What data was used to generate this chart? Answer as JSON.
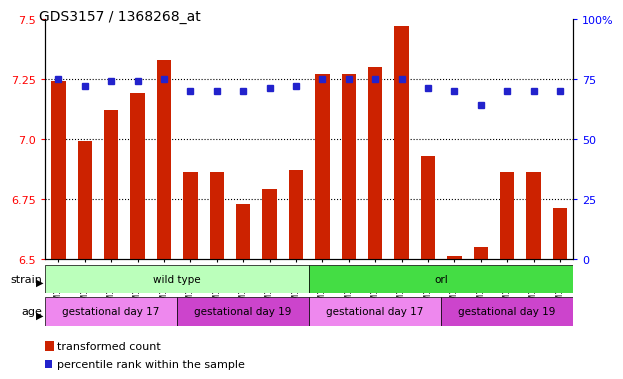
{
  "title": "GDS3157 / 1368268_at",
  "samples": [
    "GSM187669",
    "GSM187670",
    "GSM187671",
    "GSM187672",
    "GSM187673",
    "GSM187674",
    "GSM187675",
    "GSM187676",
    "GSM187677",
    "GSM187678",
    "GSM187679",
    "GSM187680",
    "GSM187681",
    "GSM187682",
    "GSM187683",
    "GSM187684",
    "GSM187685",
    "GSM187686",
    "GSM187687",
    "GSM187688"
  ],
  "transformed_count": [
    7.24,
    6.99,
    7.12,
    7.19,
    7.33,
    6.86,
    6.86,
    6.73,
    6.79,
    6.87,
    7.27,
    7.27,
    7.3,
    7.47,
    6.93,
    6.51,
    6.55,
    6.86,
    6.86,
    6.71
  ],
  "percentile_rank": [
    75,
    72,
    74,
    74,
    75,
    70,
    70,
    70,
    71,
    72,
    75,
    75,
    75,
    75,
    71,
    70,
    64,
    70,
    70,
    70
  ],
  "ylim_left": [
    6.5,
    7.5
  ],
  "ylim_right": [
    0,
    100
  ],
  "yticks_left": [
    6.5,
    6.75,
    7.0,
    7.25,
    7.5
  ],
  "yticks_right": [
    0,
    25,
    50,
    75,
    100
  ],
  "bar_color": "#cc2200",
  "dot_color": "#2222cc",
  "bg_color": "#ffffff",
  "strain_groups": [
    {
      "label": "wild type",
      "start": 0,
      "end": 10,
      "color": "#bbffbb"
    },
    {
      "label": "orl",
      "start": 10,
      "end": 20,
      "color": "#44dd44"
    }
  ],
  "age_groups": [
    {
      "label": "gestational day 17",
      "start": 0,
      "end": 5,
      "color": "#ee88ee"
    },
    {
      "label": "gestational day 19",
      "start": 5,
      "end": 10,
      "color": "#cc44cc"
    },
    {
      "label": "gestational day 17",
      "start": 10,
      "end": 15,
      "color": "#ee88ee"
    },
    {
      "label": "gestational day 19",
      "start": 15,
      "end": 20,
      "color": "#cc44cc"
    }
  ],
  "strain_label": "strain",
  "age_label": "age",
  "legend_bar_label": "transformed count",
  "legend_dot_label": "percentile rank within the sample",
  "grid_dotted_at": [
    6.75,
    7.0,
    7.25
  ]
}
